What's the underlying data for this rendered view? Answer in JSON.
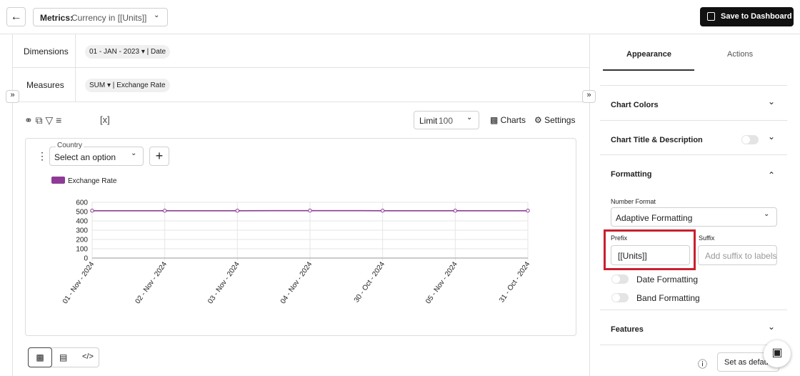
{
  "header": {
    "metrics_label": "Metrics:",
    "metrics_value": "Currency in [[Units]]",
    "save_button": "Save to Dashboard"
  },
  "query": {
    "dimensions_label": "Dimensions",
    "dimension_chip": "01 - JAN - 2023",
    "dimension_field": "Date",
    "measures_label": "Measures",
    "measure_chip": "SUM",
    "measure_field": "Exchange Rate"
  },
  "toolbar": {
    "variables": "[x]",
    "limit_label": "Limit",
    "limit_value": "100",
    "charts": "Charts",
    "settings": "Settings"
  },
  "filter": {
    "label": "Country",
    "placeholder": "Select an option"
  },
  "chart_data": {
    "type": "line",
    "categories": [
      "01 - Nov - 2024",
      "02 - Nov - 2024",
      "03 - Nov - 2024",
      "04 - Nov - 2024",
      "30 - Oct - 2024",
      "05 - Nov - 2024",
      "31 - Oct - 2024"
    ],
    "series": [
      {
        "name": "Exchange Rate",
        "color": "#8e3a96",
        "values": [
          510,
          510,
          510,
          511,
          510,
          510,
          510
        ]
      }
    ],
    "ylim": [
      0,
      600
    ],
    "yticks": [
      0,
      100,
      200,
      300,
      400,
      500,
      600
    ],
    "grid": true
  },
  "panel": {
    "tabs": [
      "Appearance",
      "Actions"
    ],
    "chart_colors": "Chart Colors",
    "chart_title": "Chart Title & Description",
    "formatting": "Formatting",
    "number_format_label": "Number Format",
    "number_format_value": "Adaptive Formatting",
    "prefix_label": "Prefix",
    "prefix_value": "[[Units]]",
    "suffix_label": "Suffix",
    "suffix_placeholder": "Add suffix to labels",
    "date_formatting": "Date Formatting",
    "band_formatting": "Band Formatting",
    "features": "Features",
    "set_default": "Set as default"
  }
}
